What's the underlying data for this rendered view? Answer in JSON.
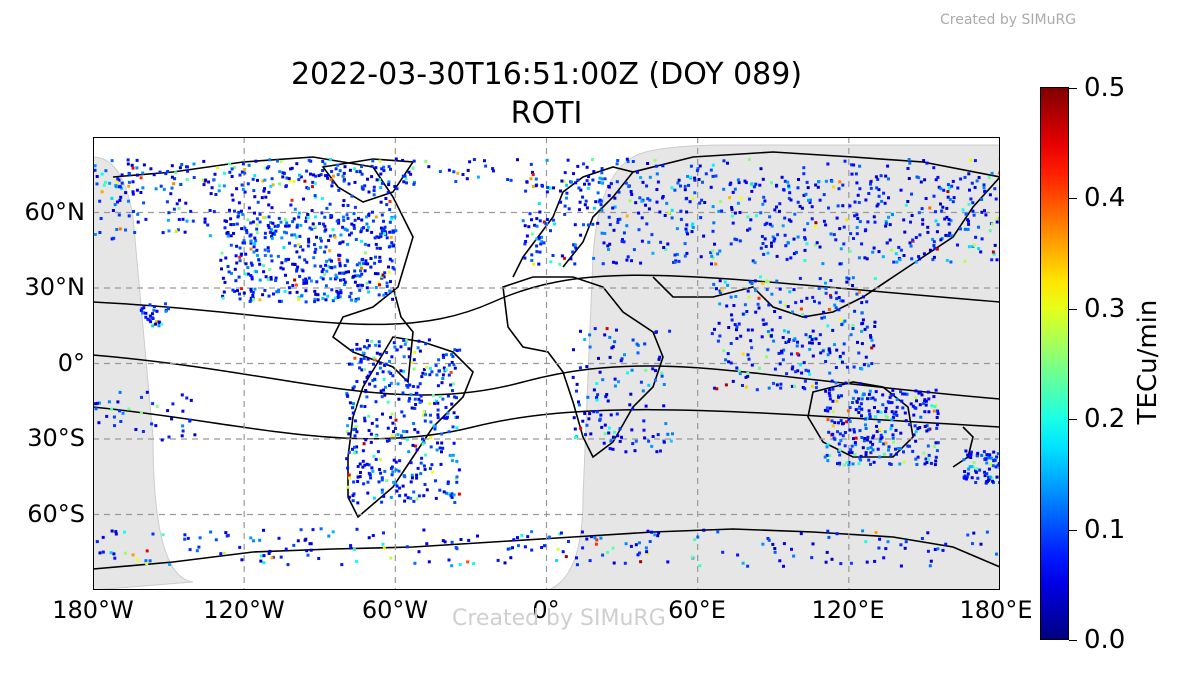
{
  "credit_top": "Created by SIMuRG",
  "credit_bottom": "Created by SIMuRG",
  "title": "2022-03-30T16:51:00Z (DOY 089)",
  "subtitle": "ROTI",
  "y_labels": [
    "60°N",
    "30°N",
    "0°",
    "30°S",
    "60°S"
  ],
  "x_labels": [
    "180°W",
    "120°W",
    "60°W",
    "0°",
    "60°E",
    "120°E",
    "180°E"
  ],
  "colorbar": {
    "label": "TECu/min",
    "ticks": [
      "0.0",
      "0.1",
      "0.2",
      "0.3",
      "0.4",
      "0.5"
    ],
    "colormap": "jet",
    "range": [
      0,
      0.5
    ]
  },
  "map": {
    "projection": "PlateCarree",
    "lon_range": [
      -180,
      180
    ],
    "lat_range": [
      -90,
      90
    ],
    "night_shade_color": "#e6e6e6",
    "grid": "dashed",
    "grid_lon": [
      -120,
      -60,
      0,
      60,
      120
    ],
    "grid_lat": [
      60,
      30,
      0,
      -30,
      -60
    ],
    "point_regions": [
      {
        "region": "north-america",
        "lon": [
          -130,
          -60
        ],
        "lat": [
          25,
          60
        ],
        "density": 420
      },
      {
        "region": "alaska-canada-north",
        "lon": [
          -180,
          -60
        ],
        "lat": [
          50,
          80
        ],
        "density": 260
      },
      {
        "region": "south-america",
        "lon": [
          -80,
          -35
        ],
        "lat": [
          -55,
          10
        ],
        "density": 380
      },
      {
        "region": "europe-russia",
        "lon": [
          -10,
          180
        ],
        "lat": [
          40,
          75
        ],
        "density": 560
      },
      {
        "region": "africa",
        "lon": [
          10,
          50
        ],
        "lat": [
          -35,
          15
        ],
        "density": 120
      },
      {
        "region": "india-se-asia",
        "lon": [
          65,
          130
        ],
        "lat": [
          -10,
          35
        ],
        "density": 260
      },
      {
        "region": "australia",
        "lon": [
          110,
          155
        ],
        "lat": [
          -40,
          -10
        ],
        "density": 260
      },
      {
        "region": "new-zealand",
        "lon": [
          165,
          180
        ],
        "lat": [
          -47,
          -34
        ],
        "density": 70
      },
      {
        "region": "antarctica-coast",
        "lon": [
          -180,
          180
        ],
        "lat": [
          -80,
          -65
        ],
        "density": 220
      },
      {
        "region": "arctic",
        "lon": [
          -180,
          180
        ],
        "lat": [
          70,
          82
        ],
        "density": 220
      },
      {
        "region": "hawaii",
        "lon": [
          -162,
          -150
        ],
        "lat": [
          15,
          25
        ],
        "density": 30
      },
      {
        "region": "pacific-islands",
        "lon": [
          -180,
          -140
        ],
        "lat": [
          -30,
          -10
        ],
        "density": 40
      }
    ]
  }
}
